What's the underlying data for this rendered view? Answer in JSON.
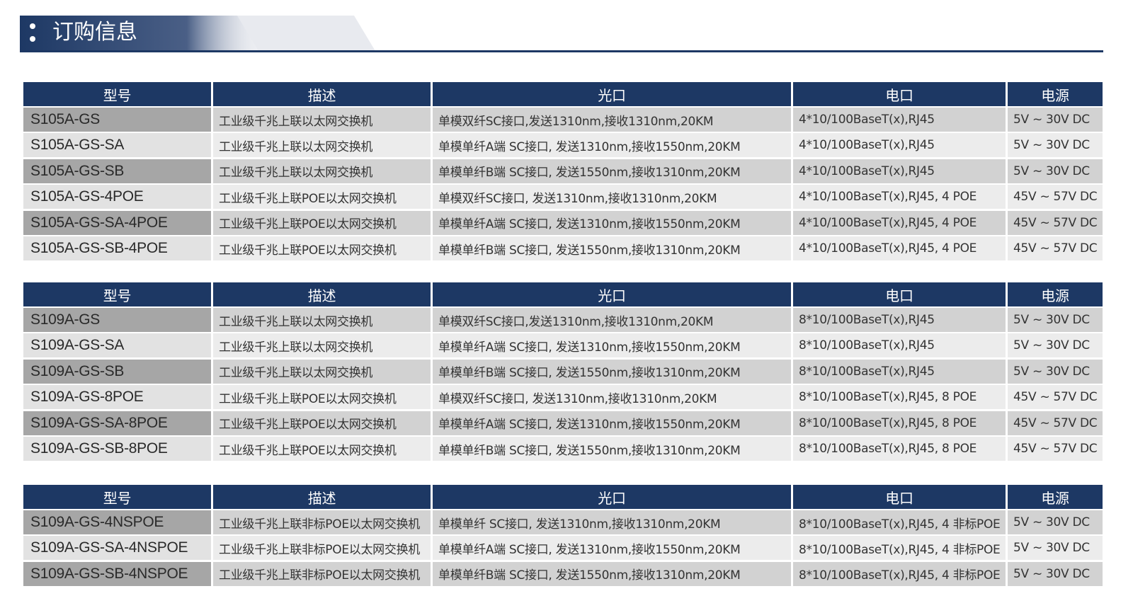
{
  "header": {
    "title": "订购信息"
  },
  "tables": [
    {
      "columns": [
        "型号",
        "描述",
        "光口",
        "电口",
        "电源"
      ],
      "rows": [
        [
          "S105A-GS",
          "工业级千兆上联以太网交换机",
          "单模双纤SC接口,发送1310nm,接收1310nm,20KM",
          "4*10/100BaseT(x),RJ45",
          "5V ~ 30V DC"
        ],
        [
          "S105A-GS-SA",
          "工业级千兆上联以太网交换机",
          "单模单纤A端 SC接口, 发送1310nm,接收1550nm,20KM",
          "4*10/100BaseT(x),RJ45",
          "5V ~ 30V DC"
        ],
        [
          "S105A-GS-SB",
          "工业级千兆上联以太网交换机",
          "单模单纤B端 SC接口, 发送1550nm,接收1310nm,20KM",
          "4*10/100BaseT(x),RJ45",
          "5V ~ 30V DC"
        ],
        [
          "S105A-GS-4POE",
          "工业级千兆上联POE以太网交换机",
          "单模双纤SC接口, 发送1310nm,接收1310nm,20KM",
          "4*10/100BaseT(x),RJ45, 4 POE",
          "45V ~ 57V DC"
        ],
        [
          "S105A-GS-SA-4POE",
          "工业级千兆上联POE以太网交换机",
          "单模单纤A端 SC接口, 发送1310nm,接收1550nm,20KM",
          "4*10/100BaseT(x),RJ45, 4 POE",
          "45V ~ 57V DC"
        ],
        [
          "S105A-GS-SB-4POE",
          "工业级千兆上联POE以太网交换机",
          "单模单纤B端 SC接口, 发送1550nm,接收1310nm,20KM",
          "4*10/100BaseT(x),RJ45, 4 POE",
          "45V ~ 57V DC"
        ]
      ]
    },
    {
      "columns": [
        "型号",
        "描述",
        "光口",
        "电口",
        "电源"
      ],
      "rows": [
        [
          "S109A-GS",
          "工业级千兆上联以太网交换机",
          "单模双纤SC接口,发送1310nm,接收1310nm,20KM",
          "8*10/100BaseT(x),RJ45",
          "5V ~ 30V DC"
        ],
        [
          "S109A-GS-SA",
          "工业级千兆上联以太网交换机",
          "单模单纤A端 SC接口, 发送1310nm,接收1550nm,20KM",
          "8*10/100BaseT(x),RJ45",
          "5V ~ 30V DC"
        ],
        [
          "S109A-GS-SB",
          "工业级千兆上联以太网交换机",
          "单模单纤B端 SC接口, 发送1550nm,接收1310nm,20KM",
          "8*10/100BaseT(x),RJ45",
          "5V ~ 30V DC"
        ],
        [
          "S109A-GS-8POE",
          "工业级千兆上联POE以太网交换机",
          "单模双纤SC接口, 发送1310nm,接收1310nm,20KM",
          "8*10/100BaseT(x),RJ45, 8 POE",
          "45V ~ 57V DC"
        ],
        [
          "S109A-GS-SA-8POE",
          "工业级千兆上联POE以太网交换机",
          "单模单纤A端 SC接口, 发送1310nm,接收1550nm,20KM",
          "8*10/100BaseT(x),RJ45, 8 POE",
          "45V ~ 57V DC"
        ],
        [
          "S109A-GS-SB-8POE",
          "工业级千兆上联POE以太网交换机",
          "单模单纤B端 SC接口, 发送1550nm,接收1310nm,20KM",
          "8*10/100BaseT(x),RJ45, 8 POE",
          "45V ~ 57V DC"
        ]
      ]
    },
    {
      "columns": [
        "型号",
        "描述",
        "光口",
        "电口",
        "电源"
      ],
      "rows": [
        [
          "S109A-GS-4NSPOE",
          "工业级千兆上联非标POE以太网交换机",
          "单模单纤 SC接口, 发送1310nm,接收1310nm,20KM",
          "8*10/100BaseT(x),RJ45, 4 非标POE",
          "5V ~ 30V DC"
        ],
        [
          "S109A-GS-SA-4NSPOE",
          "工业级千兆上联非标POE以太网交换机",
          "单模单纤A端 SC接口, 发送1310nm,接收1550nm,20KM",
          "8*10/100BaseT(x),RJ45, 4 非标POE",
          "5V ~ 30V DC"
        ],
        [
          "S109A-GS-SB-4NSPOE",
          "工业级千兆上联非标POE以太网交换机",
          "单模单纤B端 SC接口, 发送1550nm,接收1310nm,20KM",
          "8*10/100BaseT(x),RJ45, 4 非标POE",
          "5V ~ 30V DC"
        ]
      ]
    }
  ]
}
